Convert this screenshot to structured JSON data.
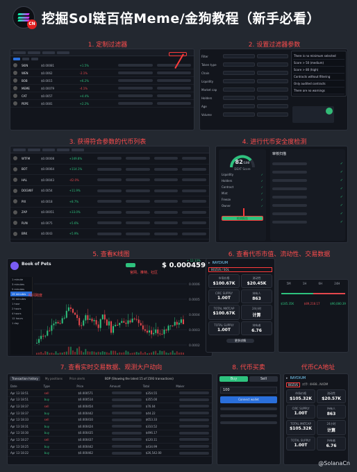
{
  "header": {
    "title": "挖掘Sol链百倍Meme/金狗教程（新手必看）",
    "logo_badge": "CN"
  },
  "steps": {
    "s1": "1. 定制过滤器",
    "s2": "2. 设置过滤器参数",
    "s3": "3. 获得符合参数的代币列表",
    "s4": "4. 进行代币安全度检测",
    "s5": "5. 查看K线图",
    "s6": "6. 查看代币市值、流动性、交易数据",
    "s7": "7. 查看实时交易数据、观测大户动向",
    "s8": "8. 代币买卖",
    "s9": "代币CA地址"
  },
  "panel1": {
    "tabs": [
      "1m",
      "5m",
      "1h",
      "6h",
      "24h"
    ],
    "rows": [
      {
        "name": "SKIN",
        "price": "$0.00081",
        "chg": "+1.5%"
      },
      {
        "name": "WEN",
        "price": "$0.0062",
        "chg": "-2.1%"
      },
      {
        "name": "BOB",
        "price": "$0.0015",
        "chg": "+6.2%"
      },
      {
        "name": "MEME",
        "price": "$0.00079",
        "chg": "-4.1%"
      },
      {
        "name": "CAT",
        "price": "$0.0057",
        "chg": "+4.4%"
      },
      {
        "name": "PEPE",
        "price": "$0.0081",
        "chg": "+2.2%"
      }
    ]
  },
  "panel2": {
    "labels": [
      "Filter",
      "Token type",
      "Chain",
      "Liquidity",
      "Market cap",
      "Holders",
      "Age",
      "Volume"
    ],
    "options": [
      "There is no minimum selected",
      "Score > 50 (medium)",
      "Score > 80 (high)",
      "Contracts without filtering",
      "Only audited contracts",
      "There are no warnings"
    ]
  },
  "panel3": {
    "rows": [
      {
        "name": "WTFM",
        "price": "$0.00008",
        "chg": "+349.8%"
      },
      {
        "name": "BOT",
        "price": "$0.00064",
        "chg": "+114.1%"
      },
      {
        "name": "HAL",
        "price": "$0.00043",
        "chg": "-42.0%"
      },
      {
        "name": "DOGWIF",
        "price": "$0.0054",
        "chg": "+11.9%"
      },
      {
        "name": "PIX",
        "price": "$0.0018",
        "chg": "+8.7%"
      },
      {
        "name": "ZAP",
        "price": "$0.00051",
        "chg": "+33.0%"
      },
      {
        "name": "RUN",
        "price": "$0.0075",
        "chg": "+5.6%"
      },
      {
        "name": "BRK",
        "price": "$0.0043",
        "chg": "+5.9%"
      }
    ]
  },
  "panel4": {
    "score": "82",
    "score_unit": "/100",
    "score_label": "DEXT Score",
    "scan_title": "审核扫描",
    "button": "检测报告",
    "checks": [
      "Liquidity",
      "Holders",
      "Contract",
      "Mint",
      "Freeze",
      "Owner"
    ]
  },
  "panel5": {
    "token": "Book of Pets",
    "price": "$ 0.0004592",
    "change": "+ 12.33%",
    "timeframe_caption": "时间跨度",
    "social_caption": "官网、推特、社区",
    "timeframes": [
      "1 minute",
      "3 minutes",
      "5 minutes",
      "15 minutes",
      "30 minutes",
      "1 hour",
      "2 hours",
      "4 hours",
      "12 hours",
      "1 day"
    ],
    "y_ticks": [
      "0.0006",
      "0.0005",
      "0.0004",
      "0.0003",
      "0.0002"
    ]
  },
  "panel6": {
    "exchange": "RAYDIUM",
    "pair": "BOZUS / SOL",
    "stats": [
      {
        "label": "市场价格",
        "value": "$100.67K"
      },
      {
        "label": "流动性",
        "value": "$20.45K"
      },
      {
        "label": "CIRC SUPPLY",
        "value": "1.00T"
      },
      {
        "label": "持有人",
        "value": "863"
      },
      {
        "label": "TOTAL MKTCAP",
        "value": "$100.67K"
      },
      {
        "label": "24小时",
        "value": "计算"
      },
      {
        "label": "TOTAL SUPPLY",
        "value": "1.00T"
      },
      {
        "label": "持有者",
        "value": "6.76"
      }
    ],
    "more": "更多详情",
    "periods": [
      "5M",
      "1H",
      "6H",
      "24H"
    ],
    "txn_values": [
      "$185.35K",
      "$89,218.17",
      "$90,080.39"
    ]
  },
  "panel7": {
    "tabs": [
      "Transaction history",
      "My positions",
      "Price alerts"
    ],
    "notice": "BOP (Showing the latest 15 of 1593 transactions)",
    "columns": [
      "Date",
      "Type",
      "Price",
      "Amount",
      "Total",
      "Maker"
    ],
    "rows": [
      {
        "date": "Apr 13 18:51",
        "type": "sell",
        "price": "$0.000571",
        "total": "$354.55"
      },
      {
        "date": "Apr 13 18:51",
        "type": "buy",
        "price": "$0.000514",
        "total": "$355.00"
      },
      {
        "date": "Apr 13 18:37",
        "type": "sell",
        "price": "$0.000454",
        "total": "$76.04"
      },
      {
        "date": "Apr 13 18:37",
        "type": "buy",
        "price": "$0.000442",
        "total": "$44.22"
      },
      {
        "date": "Apr 13 18:33",
        "type": "sell",
        "price": "$0.000410",
        "total": "$653.33"
      },
      {
        "date": "Apr 13 18:31",
        "type": "buy",
        "price": "$0.000424",
        "total": "$310.52"
      },
      {
        "date": "Apr 13 18:30",
        "type": "buy",
        "price": "$0.000435",
        "total": "$496.17"
      },
      {
        "date": "Apr 13 18:27",
        "type": "sell",
        "price": "$0.000437",
        "total": "$120.11"
      },
      {
        "date": "Apr 13 18:25",
        "type": "buy",
        "price": "$0.000442",
        "total": "$434.99"
      },
      {
        "date": "Apr 13 18:22",
        "type": "buy",
        "price": "$0.000462",
        "total": "$26,542.00"
      }
    ]
  },
  "panel8": {
    "tabs": [
      "Buy",
      "Sell"
    ],
    "amount": "100",
    "button": "Connect wallet"
  },
  "panel9": {
    "exchange": "RAYDIUM",
    "pair": "BOZUS",
    "ca": "对手: 4HB8...N4DM",
    "stats": [
      {
        "label": "市场价格",
        "value": "$105.32K"
      },
      {
        "label": "流动性",
        "value": "$20.57K"
      },
      {
        "label": "CIRC SUPPLY",
        "value": "1.00T"
      },
      {
        "label": "持有人",
        "value": "863"
      },
      {
        "label": "TOTAL MKTCAP",
        "value": "$105.32K"
      },
      {
        "label": "24小时",
        "value": "计算"
      },
      {
        "label": "TOTAL SUPPLY",
        "value": "1.00T"
      },
      {
        "label": "持有者",
        "value": "6.76"
      }
    ]
  },
  "footer": {
    "handle": "@SolanaCn"
  }
}
